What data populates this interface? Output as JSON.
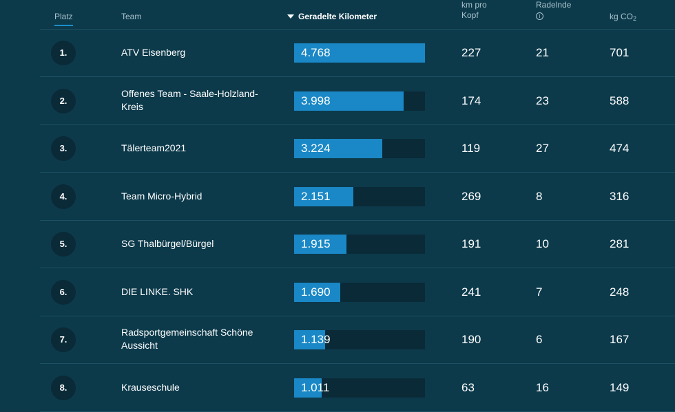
{
  "header": {
    "platz": "Platz",
    "team": "Team",
    "km": "Geradelte Kilometer",
    "km_pro": "km pro",
    "kopf": "Kopf",
    "radelnde": "Radelnde",
    "info_glyph": "i",
    "co2_prefix": "kg CO",
    "co2_sub": "2"
  },
  "colors": {
    "background": "#0c3a4b",
    "bar_fill": "#1a88c6",
    "bar_track": "#0a2a37"
  },
  "max_km": 4768,
  "rows": [
    {
      "rank": "1.",
      "team": "ATV Eisenberg",
      "km_label": "4.768",
      "km": 4768,
      "pro_kopf": "227",
      "radelnde": "21",
      "co2": "701"
    },
    {
      "rank": "2.",
      "team": "Offenes Team - Saale-Holzland-Kreis",
      "km_label": "3.998",
      "km": 3998,
      "pro_kopf": "174",
      "radelnde": "23",
      "co2": "588"
    },
    {
      "rank": "3.",
      "team": "Tälerteam2021",
      "km_label": "3.224",
      "km": 3224,
      "pro_kopf": "119",
      "radelnde": "27",
      "co2": "474"
    },
    {
      "rank": "4.",
      "team": "Team Micro-Hybrid",
      "km_label": "2.151",
      "km": 2151,
      "pro_kopf": "269",
      "radelnde": "8",
      "co2": "316"
    },
    {
      "rank": "5.",
      "team": "SG Thalbürgel/Bürgel",
      "km_label": "1.915",
      "km": 1915,
      "pro_kopf": "191",
      "radelnde": "10",
      "co2": "281"
    },
    {
      "rank": "6.",
      "team": "DIE LINKE. SHK",
      "km_label": "1.690",
      "km": 1690,
      "pro_kopf": "241",
      "radelnde": "7",
      "co2": "248"
    },
    {
      "rank": "7.",
      "team": "Radsportgemeinschaft Schöne Aussicht",
      "km_label": "1.139",
      "km": 1139,
      "pro_kopf": "190",
      "radelnde": "6",
      "co2": "167"
    },
    {
      "rank": "8.",
      "team": "Krauseschule",
      "km_label": "1.011",
      "km": 1011,
      "pro_kopf": "63",
      "radelnde": "16",
      "co2": "149"
    }
  ]
}
